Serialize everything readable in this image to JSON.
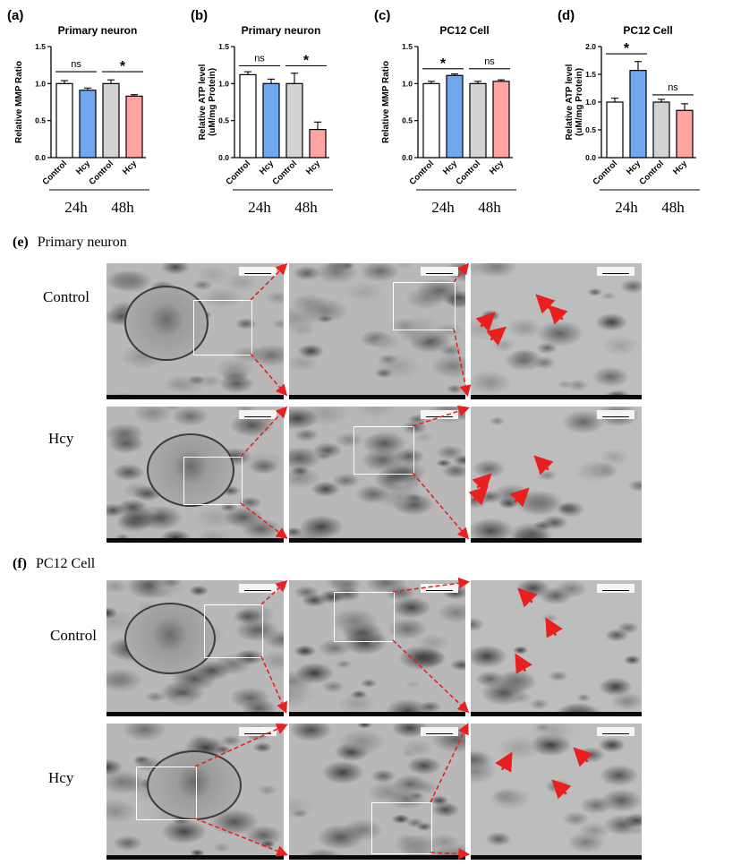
{
  "chart_data": [
    {
      "panel": "(a)",
      "type": "bar",
      "title": "Primary neuron",
      "ylabel": "Relative MMP Ratio",
      "ylim": [
        0,
        1.5
      ],
      "yticks": [
        "0.0",
        "0.5",
        "1.0",
        "1.5"
      ],
      "categories": [
        "Control",
        "Hcy",
        "Control",
        "Hcy"
      ],
      "values": [
        1.0,
        0.91,
        1.0,
        0.83
      ],
      "errors": [
        0.04,
        0.03,
        0.05,
        0.02
      ],
      "colors": [
        "#ffffff",
        "#6fa8ef",
        "#d3d3d3",
        "#ffa3a3"
      ],
      "groups": [
        "24h",
        "48h"
      ],
      "sig": [
        {
          "label": "ns",
          "y": 1.16
        },
        {
          "label": "*",
          "y": 1.16
        }
      ]
    },
    {
      "panel": "(b)",
      "type": "bar",
      "title": "Primary neuron",
      "ylabel": "Relative ATP level",
      "ylabel2": "(uM/mg Protein)",
      "ylim": [
        0,
        1.5
      ],
      "yticks": [
        "0.0",
        "0.5",
        "1.0",
        "1.5"
      ],
      "categories": [
        "Control",
        "Hcy",
        "Control",
        "Hcy"
      ],
      "values": [
        1.12,
        1.0,
        1.0,
        0.38
      ],
      "errors": [
        0.04,
        0.06,
        0.14,
        0.1
      ],
      "colors": [
        "#ffffff",
        "#6fa8ef",
        "#d3d3d3",
        "#ffa3a3"
      ],
      "groups": [
        "24h",
        "48h"
      ],
      "sig": [
        {
          "label": "ns",
          "y": 1.24
        },
        {
          "label": "*",
          "y": 1.24
        }
      ]
    },
    {
      "panel": "(c)",
      "type": "bar",
      "title": "PC12 Cell",
      "ylabel": "Relative MMP Ratio",
      "ylim": [
        0,
        1.5
      ],
      "yticks": [
        "0.0",
        "0.5",
        "1.0",
        "1.5"
      ],
      "categories": [
        "Control",
        "Hcy",
        "Control",
        "Hcy"
      ],
      "values": [
        1.0,
        1.11,
        1.0,
        1.03
      ],
      "errors": [
        0.03,
        0.02,
        0.03,
        0.02
      ],
      "colors": [
        "#ffffff",
        "#6fa8ef",
        "#d3d3d3",
        "#ffa3a3"
      ],
      "groups": [
        "24h",
        "48h"
      ],
      "sig": [
        {
          "label": "*",
          "y": 1.2
        },
        {
          "label": "ns",
          "y": 1.2
        }
      ]
    },
    {
      "panel": "(d)",
      "type": "bar",
      "title": "PC12 Cell",
      "ylabel": "Relative ATP level",
      "ylabel2": "(uM/mg Protein)",
      "ylim": [
        0,
        2.0
      ],
      "yticks": [
        "0.0",
        "0.5",
        "1.0",
        "1.5",
        "2.0"
      ],
      "categories": [
        "Control",
        "Hcy",
        "Control",
        "Hcy"
      ],
      "values": [
        1.0,
        1.57,
        1.0,
        0.85
      ],
      "errors": [
        0.07,
        0.16,
        0.05,
        0.12
      ],
      "colors": [
        "#ffffff",
        "#6fa8ef",
        "#d3d3d3",
        "#ffa3a3"
      ],
      "groups": [
        "24h",
        "48h"
      ],
      "sig": [
        {
          "label": "*",
          "y": 1.87
        },
        {
          "label": "ns",
          "y": 1.13
        }
      ]
    }
  ],
  "sections": {
    "e": {
      "letter": "(e)",
      "title": "Primary neuron",
      "rows": [
        "Control",
        "Hcy"
      ]
    },
    "f": {
      "letter": "(f)",
      "title": "PC12 Cell",
      "rows": [
        "Control",
        "Hcy"
      ]
    }
  },
  "colors": {
    "zoom_arrow": "#e8201f",
    "em_dark": "#3a3a3a",
    "em_light": "#c9c9c9"
  }
}
